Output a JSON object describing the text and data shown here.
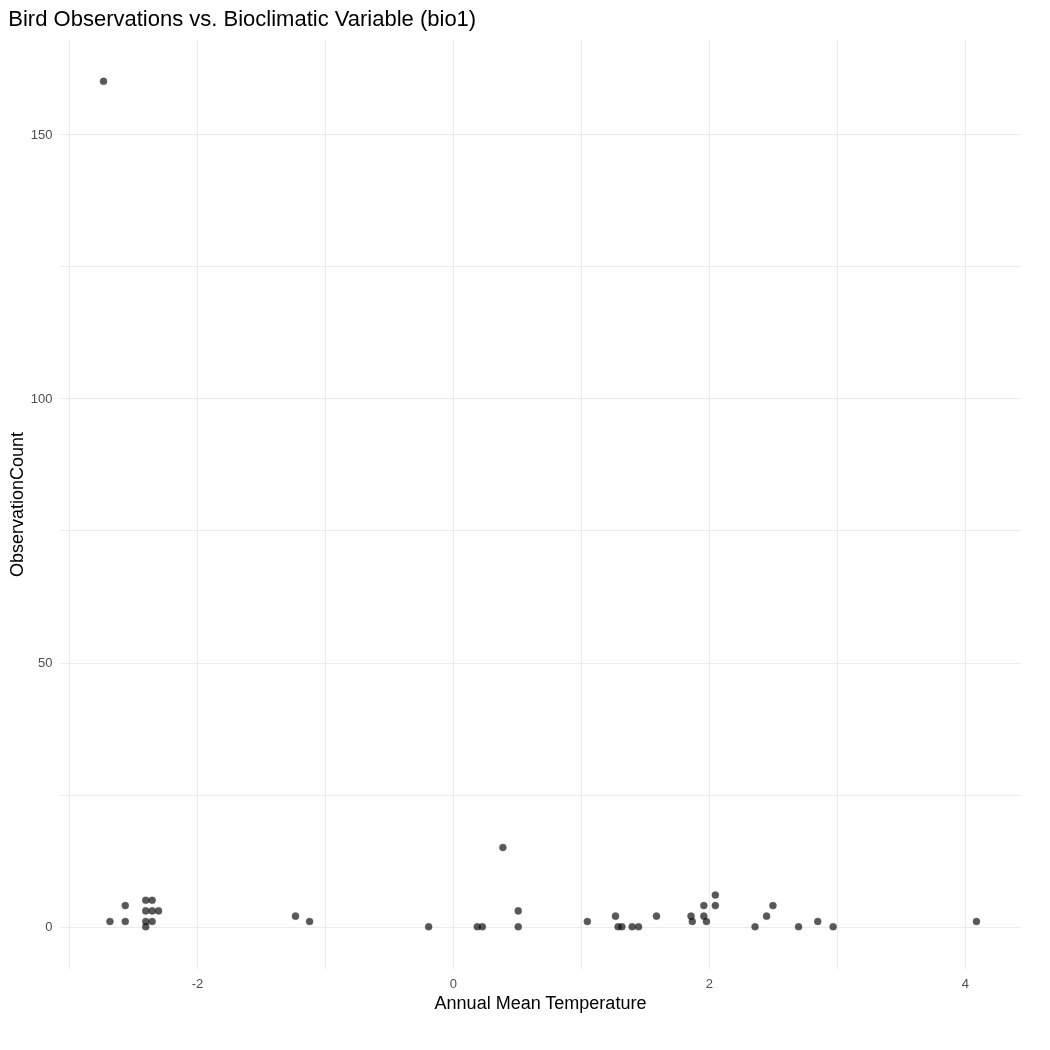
{
  "chart_data": {
    "type": "scatter",
    "title": "Bird Observations vs. Bioclimatic Variable (bio1)",
    "xlabel": "Annual Mean Temperature",
    "ylabel": "ObservationCount",
    "x": [
      -2.73,
      -2.68,
      -2.56,
      -2.56,
      -2.4,
      -2.4,
      -2.4,
      -2.4,
      -2.37,
      -2.35,
      -2.35,
      -2.35,
      -2.3,
      -1.23,
      -1.12,
      -0.19,
      0.19,
      0.23,
      0.39,
      0.51,
      0.51,
      1.05,
      1.27,
      1.29,
      1.32,
      1.4,
      1.45,
      1.59,
      1.86,
      1.87,
      1.96,
      1.96,
      1.98,
      2.05,
      2.05,
      2.36,
      2.45,
      2.5,
      2.7,
      2.85,
      2.97,
      4.09
    ],
    "values": [
      160,
      1,
      1,
      4,
      5,
      3,
      1,
      0,
      null,
      5,
      3,
      1,
      3,
      2,
      1,
      0,
      0,
      0,
      15,
      3,
      0,
      1,
      2,
      0,
      0,
      0,
      0,
      2,
      2,
      1,
      4,
      2,
      1,
      6,
      4,
      0,
      2,
      4,
      0,
      1,
      0,
      1
    ],
    "color": "#000000",
    "xlim": [
      -3.07,
      4.43
    ],
    "ylim": [
      -8,
      168
    ],
    "xticks": [
      {
        "value": -3,
        "label": null
      },
      -2,
      {
        "value": -1,
        "label": null
      },
      0,
      {
        "value": 1,
        "label": null
      },
      2,
      {
        "value": 3,
        "label": null
      },
      4
    ],
    "yticks": [
      0,
      {
        "value": 25,
        "label": null
      },
      50,
      {
        "value": 75,
        "label": null
      },
      100,
      {
        "value": 125,
        "label": null
      },
      150
    ],
    "grid": true,
    "marker": "circle"
  }
}
